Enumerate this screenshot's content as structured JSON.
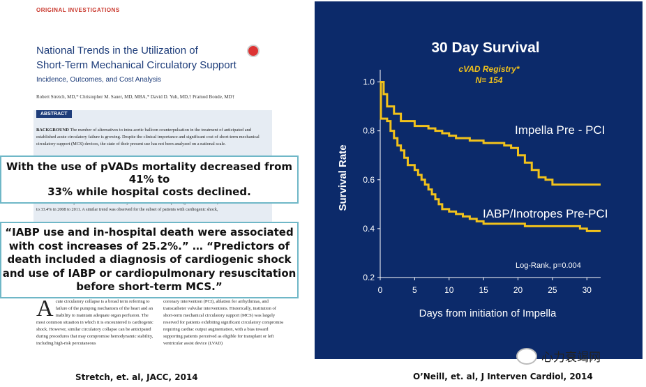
{
  "paper": {
    "section": "ORIGINAL INVESTIGATIONS",
    "title_line1": "National Trends in the Utilization of",
    "title_line2": "Short-Term Mechanical Circulatory Support",
    "subtitle": "Incidence, Outcomes, and Cost Analysis",
    "authors": "Robert Stretch, MD,* Christopher M. Sauer, MD, MBA,* David D. Yuh, MD,† Pramod Bonde, MD†",
    "abstract_label": "ABSTRACT",
    "background_label": "BACKGROUND",
    "background_text": "The number of alternatives to intra-aortic balloon counterpulsation in the treatment of anticipated and established acute circulatory failure is growing. Despite the clinical importance and significant cost of short-term mechanical circulatory support (MCS) devices, the state of their present use has not been analyzed on a national scale.",
    "results_text": "101% increase in nonpercutaneous devices. Mortality rates declined over this period (p for trend = 0.027) from 41.1% in 2004 to 2007 to 33.4% in 2008 to 2011. A similar trend was observed for the subset of patients with cardiogenic shock,",
    "dropcap": "A",
    "col1_text": "cute circulatory collapse is a broad term referring to failure of the pumping mechanism of the heart and an inability to maintain adequate organ perfusion. The most common situation in which it is encountered is cardiogenic shock. However, similar circulatory collapse can be anticipated during procedures that may compromise hemodynamic stability, including high-risk percutaneous",
    "col2_text": "coronary intervention (PCI), ablation for arrhythmias, and transcatheter valvular interventions. Historically, institution of short-term mechanical circulatory support (MCS) was largely reserved for patients exhibiting significant circulatory compromise requiring cardiac output augmentation, with a bias toward supporting patients perceived as eligible for transplant or left ventricular assist device (LVAD)"
  },
  "callouts": {
    "first_line1": "With the use of pVADs mortality decreased from",
    "first_line2": "41% to",
    "first_line3": "33% while hospital costs declined.",
    "second_line1": "“IABP use and in-hospital death were associated",
    "second_line2": "with cost increases of 25.2%.” … “Predictors of",
    "second_line3": "death included a diagnosis of cardiogenic shock",
    "second_line4": "and use of IABP or cardiopulmonary resuscitation",
    "second_line5": "before short-term MCS.”"
  },
  "captions": {
    "left": "Stretch, et. al, JACC, 2014",
    "right": "O’Neill, et. al, J Interven Cardiol, 2014"
  },
  "watermark": {
    "text": "心力衰竭网",
    "icon": "wechat-icon"
  },
  "colors": {
    "panel_bg": "#0c2a6a",
    "curve": "#f2c21b",
    "callout_border": "#6fb7c7",
    "section_red": "#c9372c"
  },
  "chart_data": {
    "type": "line",
    "title": "30 Day Survival",
    "registry_line1": "cVAD Registry*",
    "registry_line2": "N= 154",
    "xlabel": "Days from initiation of Impella",
    "ylabel": "Survival Rate",
    "xlim": [
      0,
      32
    ],
    "ylim": [
      0.2,
      1.05
    ],
    "xticks": [
      0,
      5,
      10,
      15,
      20,
      25,
      30
    ],
    "yticks": [
      0.2,
      0.4,
      0.6,
      0.8,
      1.0
    ],
    "ytick_labels": [
      "0.2",
      "0.4",
      "0.6",
      "0.8",
      "1.0"
    ],
    "annotation": "Log-Rank, p=0.004",
    "grid": false,
    "series": [
      {
        "name": "Impella Pre - PCI",
        "step_points": [
          [
            0,
            1.0
          ],
          [
            0.5,
            0.95
          ],
          [
            1,
            0.9
          ],
          [
            2,
            0.87
          ],
          [
            3,
            0.84
          ],
          [
            5,
            0.82
          ],
          [
            7,
            0.81
          ],
          [
            8,
            0.8
          ],
          [
            9,
            0.79
          ],
          [
            10,
            0.78
          ],
          [
            11,
            0.77
          ],
          [
            13,
            0.76
          ],
          [
            15,
            0.75
          ],
          [
            18,
            0.74
          ],
          [
            19,
            0.73
          ],
          [
            20,
            0.7
          ],
          [
            21,
            0.67
          ],
          [
            22,
            0.64
          ],
          [
            23,
            0.61
          ],
          [
            24,
            0.6
          ],
          [
            25,
            0.58
          ],
          [
            28,
            0.58
          ],
          [
            32,
            0.58
          ]
        ]
      },
      {
        "name": "IABP/Inotropes Pre-PCI",
        "step_points": [
          [
            0,
            1.0
          ],
          [
            0.1,
            0.85
          ],
          [
            1,
            0.84
          ],
          [
            1.5,
            0.8
          ],
          [
            2,
            0.77
          ],
          [
            2.5,
            0.74
          ],
          [
            3,
            0.72
          ],
          [
            3.5,
            0.69
          ],
          [
            4,
            0.66
          ],
          [
            5,
            0.64
          ],
          [
            5.5,
            0.62
          ],
          [
            6,
            0.6
          ],
          [
            6.5,
            0.58
          ],
          [
            7,
            0.56
          ],
          [
            7.5,
            0.54
          ],
          [
            8,
            0.52
          ],
          [
            8.5,
            0.5
          ],
          [
            9,
            0.48
          ],
          [
            10,
            0.47
          ],
          [
            11,
            0.46
          ],
          [
            12,
            0.45
          ],
          [
            13,
            0.44
          ],
          [
            14,
            0.43
          ],
          [
            15,
            0.42
          ],
          [
            18,
            0.42
          ],
          [
            21,
            0.41
          ],
          [
            25,
            0.41
          ],
          [
            28,
            0.41
          ],
          [
            29,
            0.4
          ],
          [
            30,
            0.39
          ],
          [
            32,
            0.39
          ]
        ]
      }
    ]
  }
}
